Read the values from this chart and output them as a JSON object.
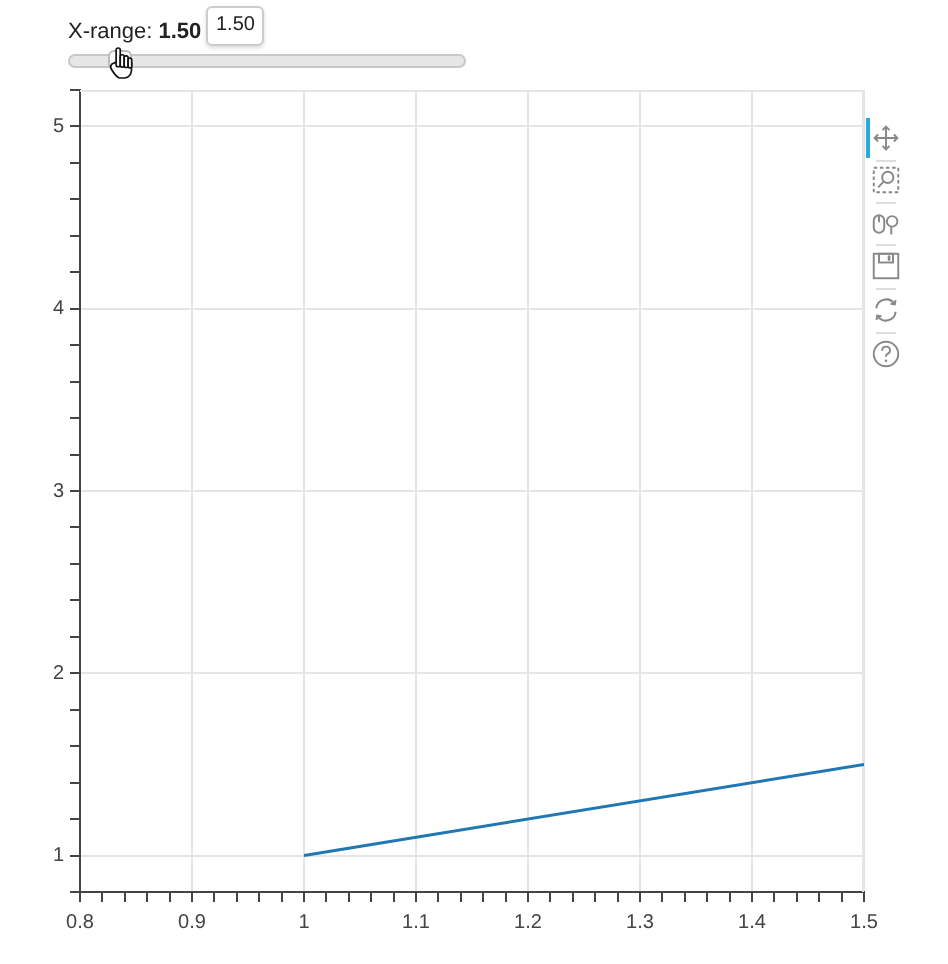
{
  "chart_data": {
    "type": "line",
    "annotations": [
      "X-range: 1.50",
      "1.50"
    ],
    "x": [
      1,
      1.5
    ],
    "series": [
      {
        "color": "#1f77b4",
        "values": [
          1,
          1.5
        ]
      }
    ],
    "xlim": [
      0.8,
      1.5
    ],
    "ylim": [
      0.8,
      5.2
    ],
    "xticks": [
      0.8,
      {
        "value": 0.82,
        "label": null
      },
      {
        "value": 0.84,
        "label": null
      },
      {
        "value": 0.86,
        "label": null
      },
      {
        "value": 0.88,
        "label": null
      },
      0.9,
      {
        "value": 0.92,
        "label": null
      },
      {
        "value": 0.94,
        "label": null
      },
      {
        "value": 0.96,
        "label": null
      },
      {
        "value": 0.98,
        "label": null
      },
      1,
      {
        "value": 1.02,
        "label": null
      },
      {
        "value": 1.04,
        "label": null
      },
      {
        "value": 1.06,
        "label": null
      },
      {
        "value": 1.08,
        "label": null
      },
      1.1,
      {
        "value": 1.12,
        "label": null
      },
      {
        "value": 1.14,
        "label": null
      },
      {
        "value": 1.16,
        "label": null
      },
      {
        "value": 1.18,
        "label": null
      },
      1.2,
      {
        "value": 1.22,
        "label": null
      },
      {
        "value": 1.24,
        "label": null
      },
      {
        "value": 1.26,
        "label": null
      },
      {
        "value": 1.28,
        "label": null
      },
      1.3,
      {
        "value": 1.32,
        "label": null
      },
      {
        "value": 1.34,
        "label": null
      },
      {
        "value": 1.36,
        "label": null
      },
      {
        "value": 1.38,
        "label": null
      },
      1.4,
      {
        "value": 1.42,
        "label": null
      },
      {
        "value": 1.44,
        "label": null
      },
      {
        "value": 1.46,
        "label": null
      },
      {
        "value": 1.48,
        "label": null
      },
      1.5
    ],
    "yticks": [
      {
        "value": 0.8,
        "label": null
      },
      1,
      {
        "value": 1.2,
        "label": null
      },
      {
        "value": 1.4,
        "label": null
      },
      {
        "value": 1.6,
        "label": null
      },
      {
        "value": 1.8,
        "label": null
      },
      2,
      {
        "value": 2.2,
        "label": null
      },
      {
        "value": 2.4,
        "label": null
      },
      {
        "value": 2.6,
        "label": null
      },
      {
        "value": 2.8,
        "label": null
      },
      3,
      {
        "value": 3.2,
        "label": null
      },
      {
        "value": 3.4,
        "label": null
      },
      {
        "value": 3.6,
        "label": null
      },
      {
        "value": 3.8,
        "label": null
      },
      4,
      {
        "value": 4.2,
        "label": null
      },
      {
        "value": 4.4,
        "label": null
      },
      {
        "value": 4.6,
        "label": null
      },
      {
        "value": 4.8,
        "label": null
      },
      5,
      {
        "value": 5.2,
        "label": null
      }
    ],
    "grid": true
  }
}
